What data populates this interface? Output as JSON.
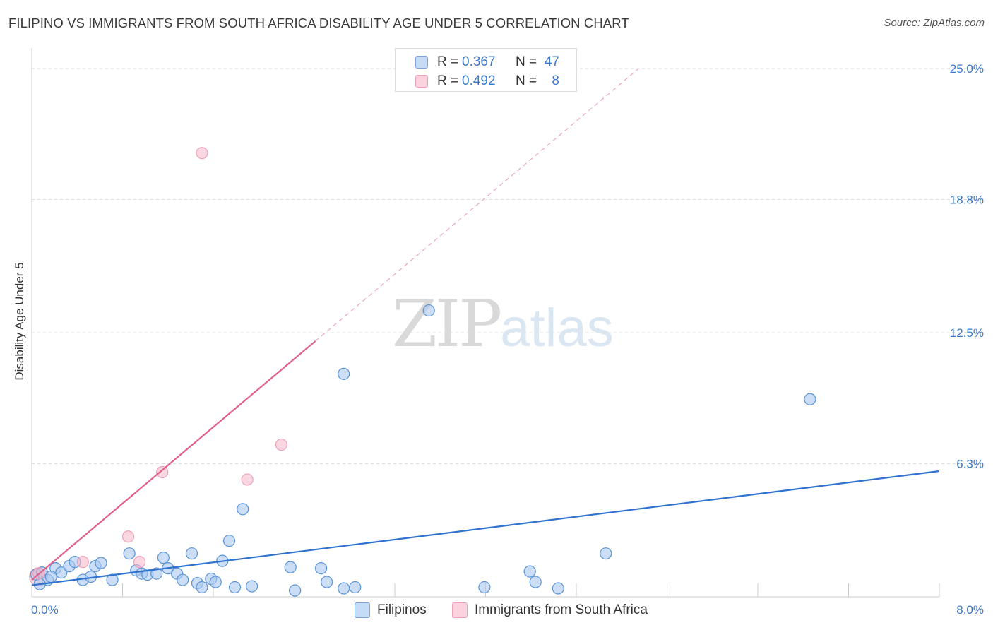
{
  "title": "FILIPINO VS IMMIGRANTS FROM SOUTH AFRICA DISABILITY AGE UNDER 5 CORRELATION CHART",
  "source": "Source: ZipAtlas.com",
  "watermark": {
    "zip": "ZIP",
    "atlas": "atlas"
  },
  "legend_top": [
    {
      "r_label": "R =",
      "r_value": "0.367",
      "n_label": "N =",
      "n_value": "47",
      "color": "#a8c8f0"
    },
    {
      "r_label": "R =",
      "r_value": "0.492",
      "n_label": "N =",
      "n_value": "8",
      "color": "#f5b6c8"
    }
  ],
  "legend_bottom": [
    {
      "label": "Filipinos",
      "color": "#a8c8f0"
    },
    {
      "label": "Immigrants from South Africa",
      "color": "#f5b6c8"
    }
  ],
  "chart_data": {
    "type": "scatter",
    "title": "FILIPINO VS IMMIGRANTS FROM SOUTH AFRICA DISABILITY AGE UNDER 5 CORRELATION CHART",
    "xlabel": "",
    "ylabel": "Disability Age Under 5",
    "xlim": [
      0,
      8.0
    ],
    "ylim": [
      0,
      25.0
    ],
    "x_tick_labels": [
      "0.0%",
      "8.0%"
    ],
    "y_ticks": [
      6.3,
      12.5,
      18.8,
      25.0
    ],
    "y_tick_labels": [
      "6.3%",
      "12.5%",
      "18.8%",
      "25.0%"
    ],
    "grid": true,
    "series": [
      {
        "name": "Filipinos",
        "color": "#5b93d6",
        "fill": "#a8c8f0",
        "points": [
          [
            0.04,
            1.05
          ],
          [
            0.09,
            1.15
          ],
          [
            0.14,
            0.8
          ],
          [
            0.21,
            1.35
          ],
          [
            0.26,
            1.15
          ],
          [
            0.33,
            1.45
          ],
          [
            0.38,
            1.65
          ],
          [
            0.45,
            0.8
          ],
          [
            0.52,
            0.95
          ],
          [
            0.56,
            1.45
          ],
          [
            0.61,
            1.6
          ],
          [
            0.71,
            0.8
          ],
          [
            0.86,
            2.05
          ],
          [
            0.92,
            1.25
          ],
          [
            0.97,
            1.1
          ],
          [
            1.02,
            1.05
          ],
          [
            1.1,
            1.1
          ],
          [
            1.16,
            1.85
          ],
          [
            1.2,
            1.35
          ],
          [
            1.28,
            1.1
          ],
          [
            1.33,
            0.8
          ],
          [
            1.41,
            2.05
          ],
          [
            1.46,
            0.65
          ],
          [
            1.5,
            0.45
          ],
          [
            1.58,
            0.85
          ],
          [
            1.62,
            0.7
          ],
          [
            1.68,
            1.7
          ],
          [
            1.74,
            2.65
          ],
          [
            1.79,
            0.45
          ],
          [
            1.86,
            4.15
          ],
          [
            1.94,
            0.5
          ],
          [
            2.28,
            1.4
          ],
          [
            2.32,
            0.3
          ],
          [
            2.55,
            1.35
          ],
          [
            2.6,
            0.7
          ],
          [
            2.75,
            10.55
          ],
          [
            2.75,
            0.4
          ],
          [
            2.85,
            0.45
          ],
          [
            3.5,
            13.55
          ],
          [
            3.99,
            0.45
          ],
          [
            4.39,
            1.2
          ],
          [
            4.44,
            0.7
          ],
          [
            4.64,
            0.4
          ],
          [
            5.06,
            2.05
          ],
          [
            6.86,
            9.35
          ],
          [
            0.17,
            0.95
          ],
          [
            0.07,
            0.6
          ]
        ],
        "trend": {
          "x": [
            0.0,
            8.0
          ],
          "y": [
            0.55,
            5.95
          ]
        }
      },
      {
        "name": "Immigrants from South Africa",
        "color": "#e0608a",
        "fill": "#f5b6c8",
        "points": [
          [
            0.06,
            1.1
          ],
          [
            0.45,
            1.65
          ],
          [
            0.85,
            2.85
          ],
          [
            0.95,
            1.65
          ],
          [
            1.15,
            5.9
          ],
          [
            1.5,
            21.0
          ],
          [
            1.9,
            5.55
          ],
          [
            2.2,
            7.2
          ]
        ],
        "trend_solid": {
          "x": [
            0.0,
            2.5
          ],
          "y": [
            0.8,
            12.1
          ]
        },
        "trend_dashed": {
          "x": [
            2.5,
            5.35
          ],
          "y": [
            12.1,
            25.0
          ]
        }
      }
    ]
  }
}
